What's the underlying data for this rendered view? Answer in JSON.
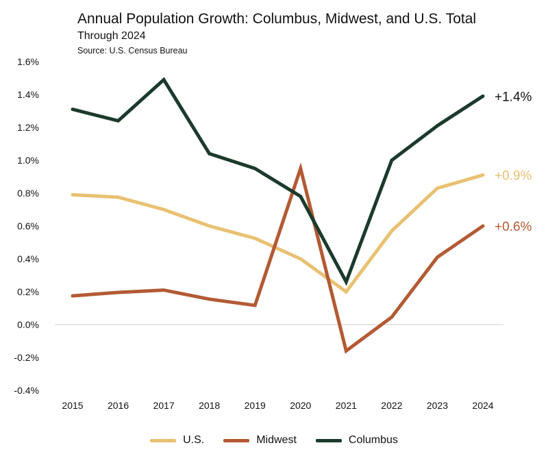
{
  "chart_data": {
    "type": "line",
    "title": "Annual Population Growth: Columbus, Midwest, and U.S. Total",
    "subtitle": "Through 2024",
    "source": "Source: U.S. Census Bureau",
    "xlabel": "",
    "ylabel": "",
    "x": [
      2015,
      2016,
      2017,
      2018,
      2019,
      2020,
      2021,
      2022,
      2023,
      2024
    ],
    "x_tick_labels": [
      "2015",
      "2016",
      "2017",
      "2018",
      "2019",
      "2020",
      "2021",
      "2022",
      "2023",
      "2024"
    ],
    "ylim": [
      -0.4,
      1.6
    ],
    "y_ticks": [
      -0.4,
      -0.2,
      0.0,
      0.2,
      0.4,
      0.6,
      0.8,
      1.0,
      1.2,
      1.4,
      1.6
    ],
    "y_tick_labels": [
      "-0.4%",
      "-0.2%",
      "0.0%",
      "0.2%",
      "0.4%",
      "0.6%",
      "0.8%",
      "1.0%",
      "1.2%",
      "1.4%",
      "1.6%"
    ],
    "grid": false,
    "legend_position": "bottom",
    "series": [
      {
        "name": "U.S.",
        "color": "#E8C172",
        "values": [
          0.79,
          0.775,
          0.7,
          0.6,
          0.525,
          0.4,
          0.2,
          0.57,
          0.83,
          0.91
        ],
        "end_label": "+0.9%"
      },
      {
        "name": "Midwest",
        "color": "#B35A34",
        "values": [
          0.175,
          0.196,
          0.21,
          0.155,
          0.117,
          0.95,
          -0.16,
          0.046,
          0.41,
          0.6
        ],
        "end_label": "+0.6%"
      },
      {
        "name": "Columbus",
        "color": "#1C3A2B",
        "values": [
          1.31,
          1.24,
          1.49,
          1.04,
          0.95,
          0.78,
          0.26,
          1.0,
          1.21,
          1.39
        ],
        "end_label": "+1.4%",
        "end_label_color": "#111111"
      }
    ]
  }
}
